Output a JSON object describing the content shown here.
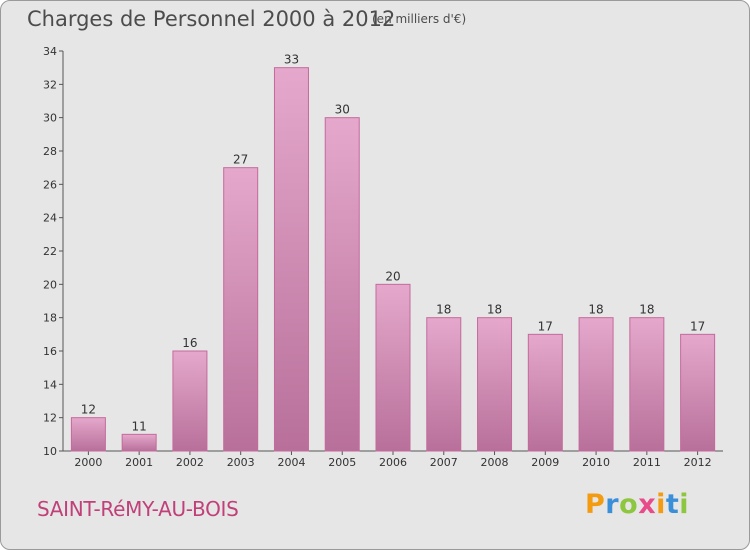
{
  "header": {
    "title": "Charges de Personnel 2000 à 2012",
    "subtitle": "(en milliers d'€)"
  },
  "footer": {
    "town": "SAINT-RéMY-AU-BOIS",
    "logo_letters": [
      {
        "ch": "P",
        "color": "#f39c12"
      },
      {
        "ch": "r",
        "color": "#3a8fd8"
      },
      {
        "ch": "o",
        "color": "#8dc63f"
      },
      {
        "ch": "x",
        "color": "#e84a8a"
      },
      {
        "ch": "i",
        "color": "#f39c12"
      },
      {
        "ch": "t",
        "color": "#3a8fd8"
      },
      {
        "ch": "i",
        "color": "#8dc63f"
      }
    ]
  },
  "colors": {
    "bar_fill_light": "#e5a8cc",
    "bar_fill_dark": "#b8709a",
    "bar_stroke": "#c46a9c",
    "town": "#c0407a"
  },
  "chart_data": {
    "type": "bar",
    "title": "Charges de Personnel 2000 à 2012",
    "subtitle": "(en milliers d'€)",
    "categories": [
      "2000",
      "2001",
      "2002",
      "2003",
      "2004",
      "2005",
      "2006",
      "2007",
      "2008",
      "2009",
      "2010",
      "2011",
      "2012"
    ],
    "values": [
      12,
      11,
      16,
      27,
      33,
      30,
      20,
      18,
      18,
      17,
      18,
      18,
      17
    ],
    "ylim": [
      10,
      34
    ],
    "yticks": [
      10,
      12,
      14,
      16,
      18,
      20,
      22,
      24,
      26,
      28,
      30,
      32,
      34
    ],
    "grid": false,
    "xlabel": "",
    "ylabel": ""
  }
}
